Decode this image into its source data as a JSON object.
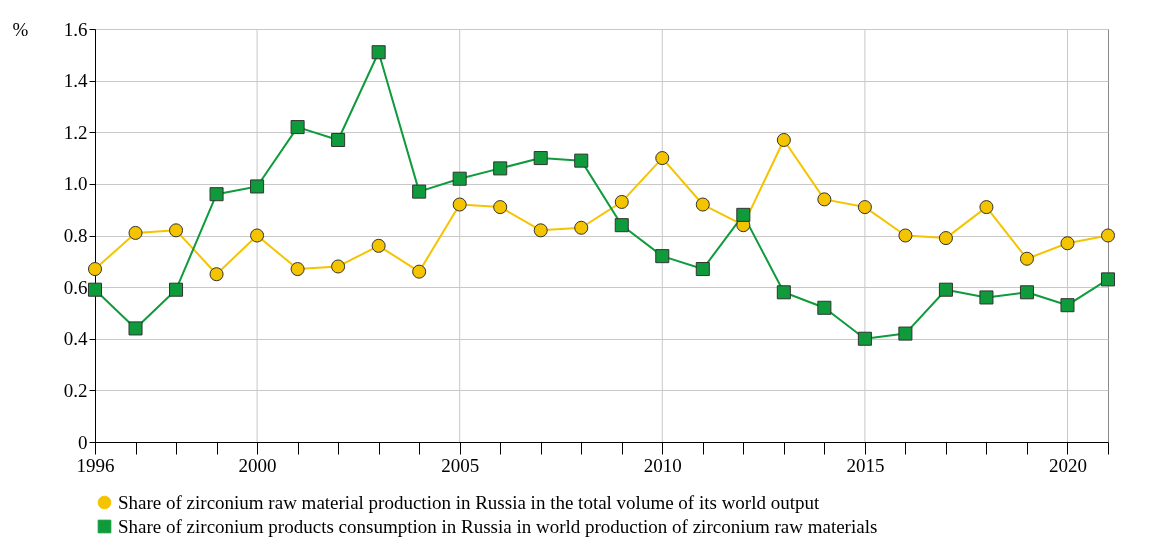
{
  "chart_data": {
    "type": "line",
    "ylabel": "%",
    "x": [
      1996,
      1997,
      1998,
      1999,
      2000,
      2001,
      2002,
      2003,
      2004,
      2005,
      2006,
      2007,
      2008,
      2009,
      2010,
      2011,
      2012,
      2013,
      2014,
      2015,
      2016,
      2017,
      2018,
      2019,
      2020,
      2021
    ],
    "series": [
      {
        "name": "Share of zirconium raw material production in Russia in the total volume of its world output",
        "color": "#f5c400",
        "marker": "circle",
        "values": [
          0.67,
          0.81,
          0.82,
          0.65,
          0.8,
          0.67,
          0.68,
          0.76,
          0.66,
          0.92,
          0.91,
          0.82,
          0.83,
          0.93,
          1.1,
          0.92,
          0.84,
          1.17,
          0.94,
          0.91,
          0.8,
          0.79,
          0.91,
          0.71,
          0.77,
          0.8
        ]
      },
      {
        "name": "Share of zirconium products consumption in Russia in world production of zirconium raw materials",
        "color": "#0f9b3c",
        "marker": "square",
        "values": [
          0.59,
          0.44,
          0.59,
          0.96,
          0.99,
          1.22,
          1.17,
          1.51,
          0.97,
          1.02,
          1.06,
          1.1,
          1.09,
          0.84,
          0.72,
          0.67,
          0.88,
          0.58,
          0.52,
          0.4,
          0.42,
          0.59,
          0.56,
          0.58,
          0.53,
          0.63
        ]
      }
    ],
    "xlim": [
      1996,
      2021
    ],
    "xticks": [
      1996,
      {
        "value": 1997,
        "label": null
      },
      {
        "value": 1998,
        "label": null
      },
      {
        "value": 1999,
        "label": null
      },
      2000,
      {
        "value": 2001,
        "label": null
      },
      {
        "value": 2002,
        "label": null
      },
      {
        "value": 2003,
        "label": null
      },
      {
        "value": 2004,
        "label": null
      },
      2005,
      {
        "value": 2006,
        "label": null
      },
      {
        "value": 2007,
        "label": null
      },
      {
        "value": 2008,
        "label": null
      },
      {
        "value": 2009,
        "label": null
      },
      2010,
      {
        "value": 2011,
        "label": null
      },
      {
        "value": 2012,
        "label": null
      },
      {
        "value": 2013,
        "label": null
      },
      {
        "value": 2014,
        "label": null
      },
      2015,
      {
        "value": 2016,
        "label": null
      },
      {
        "value": 2017,
        "label": null
      },
      {
        "value": 2018,
        "label": null
      },
      {
        "value": 2019,
        "label": null
      },
      2020,
      {
        "value": 2021,
        "label": null
      }
    ],
    "ylim": [
      0,
      1.6
    ],
    "yticks": [
      0,
      {
        "value": 0.2,
        "label": "0.2"
      },
      {
        "value": 0.4,
        "label": "0.4"
      },
      {
        "value": 0.6,
        "label": "0.6"
      },
      {
        "value": 0.8,
        "label": "0.8"
      },
      {
        "value": 1,
        "label": "1.0"
      },
      {
        "value": 1.2,
        "label": "1.2"
      },
      {
        "value": 1.4,
        "label": "1.4"
      },
      {
        "value": 1.6,
        "label": "1.6"
      }
    ],
    "grid": true,
    "legend": "bottom",
    "line_style": "solid"
  }
}
